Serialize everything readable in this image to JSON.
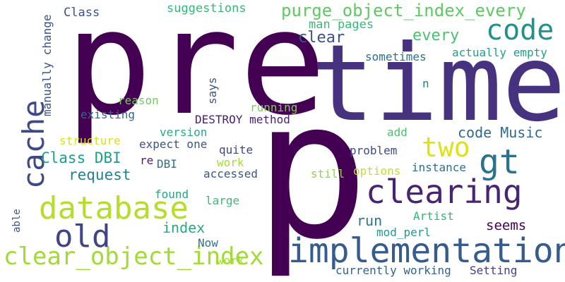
{
  "cloud": {
    "background": "#ffffff",
    "words": [
      {
        "text": "pre",
        "color": "#440154"
      },
      {
        "text": "time",
        "color": "#46327e"
      },
      {
        "text": "p",
        "color": "#440154"
      },
      {
        "text": "implementation",
        "color": "#365c8d"
      },
      {
        "text": "clearing",
        "color": "#482475"
      },
      {
        "text": "database",
        "color": "#b5de2b"
      },
      {
        "text": "clear_object_index",
        "color": "#a2da37"
      },
      {
        "text": "old",
        "color": "#414487"
      },
      {
        "text": "cache",
        "color": "#3e4989"
      },
      {
        "text": "code",
        "color": "#21918c"
      },
      {
        "text": "two",
        "color": "#dde318"
      },
      {
        "text": "gt",
        "color": "#2c728e"
      },
      {
        "text": "purge_object_index_every",
        "color": "#5ec962"
      },
      {
        "text": "code Music",
        "color": "#31688e"
      },
      {
        "text": "Class DBI",
        "color": "#1f9e89"
      },
      {
        "text": "request",
        "color": "#277f8e"
      },
      {
        "text": "clear",
        "color": "#3b528b"
      },
      {
        "text": "every",
        "color": "#4ac16d"
      },
      {
        "text": "index",
        "color": "#25ab82"
      },
      {
        "text": "seems",
        "color": "#440154"
      },
      {
        "text": "run",
        "color": "#2a788e"
      },
      {
        "text": "actually empty",
        "color": "#1fa187"
      },
      {
        "text": "sometimes",
        "color": "#2c728e"
      },
      {
        "text": "suggestions",
        "color": "#35b779"
      },
      {
        "text": "man pages",
        "color": "#38b977"
      },
      {
        "text": "Class",
        "color": "#3b528b"
      },
      {
        "text": "DESTROY method",
        "color": "#482173"
      },
      {
        "text": "existing",
        "color": "#31688e"
      },
      {
        "text": "reason",
        "color": "#6ece58"
      },
      {
        "text": "says",
        "color": "#3a548c"
      },
      {
        "text": "running",
        "color": "#7ad151"
      },
      {
        "text": "version",
        "color": "#25ab82"
      },
      {
        "text": "structure",
        "color": "#d8e219"
      },
      {
        "text": "expect one",
        "color": "#3b528b"
      },
      {
        "text": "add",
        "color": "#4ac16d"
      },
      {
        "text": "n",
        "color": "#26828e"
      },
      {
        "text": "problem",
        "color": "#3e4a89"
      },
      {
        "text": "quite",
        "color": "#3f4788"
      },
      {
        "text": "re",
        "color": "#481f70"
      },
      {
        "text": "DBI",
        "color": "#2d708e"
      },
      {
        "text": "work",
        "color": "#a5db36"
      },
      {
        "text": "accessed",
        "color": "#39568c"
      },
      {
        "text": "still",
        "color": "#8fd744"
      },
      {
        "text": "options",
        "color": "#c2df23"
      },
      {
        "text": "instance",
        "color": "#2e6e8e"
      },
      {
        "text": "found",
        "color": "#22a785"
      },
      {
        "text": "large",
        "color": "#3cbb75"
      },
      {
        "text": "Artist",
        "color": "#32b67a"
      },
      {
        "text": "mod_perl",
        "color": "#1f9a8a"
      },
      {
        "text": "Now",
        "color": "#2a768e"
      },
      {
        "text": "work",
        "color": "#a8db34"
      },
      {
        "text": "currently working",
        "color": "#33638d"
      },
      {
        "text": "Setting",
        "color": "#433e85"
      },
      {
        "text": "able",
        "color": "#3b528b"
      },
      {
        "text": "manually change",
        "color": "#3b528b"
      },
      {
        "text": "Class",
        "color": "#46337f"
      }
    ]
  }
}
